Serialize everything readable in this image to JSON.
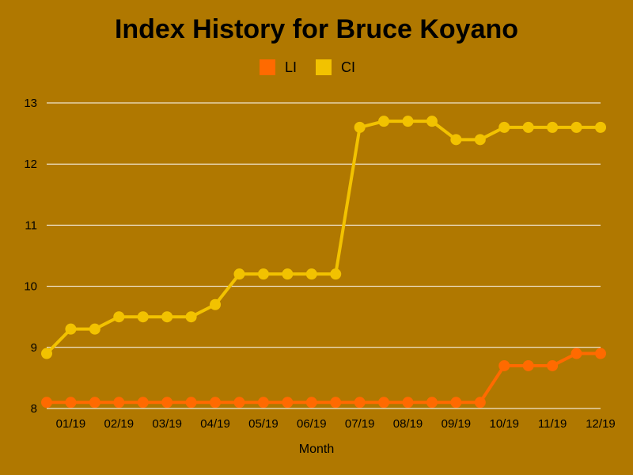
{
  "chart_data": {
    "type": "line",
    "title": "Index History for Bruce Koyano",
    "xlabel": "Month",
    "ylabel": "",
    "ylim": [
      8,
      13
    ],
    "yticks": [
      "8",
      "9",
      "10",
      "11",
      "12",
      "13"
    ],
    "x_tick_labels": [
      "01/19",
      "02/19",
      "03/19",
      "04/19",
      "05/19",
      "06/19",
      "07/19",
      "08/19",
      "09/19",
      "10/19",
      "11/19",
      "12/19"
    ],
    "grid": true,
    "legend_position": "top-center",
    "series": [
      {
        "name": "LI",
        "color": "#ff6a00",
        "values": [
          8.1,
          8.1,
          8.1,
          8.1,
          8.1,
          8.1,
          8.1,
          8.1,
          8.1,
          8.1,
          8.1,
          8.1,
          8.1,
          8.1,
          8.1,
          8.1,
          8.1,
          8.1,
          8.1,
          8.7,
          8.7,
          8.7,
          8.9,
          8.9
        ]
      },
      {
        "name": "CI",
        "color": "#f2c200",
        "values": [
          8.9,
          9.3,
          9.3,
          9.5,
          9.5,
          9.5,
          9.5,
          9.7,
          10.2,
          10.2,
          10.2,
          10.2,
          10.2,
          12.6,
          12.7,
          12.7,
          12.7,
          12.4,
          12.4,
          12.6,
          12.6,
          12.6,
          12.6,
          12.6
        ]
      }
    ]
  }
}
